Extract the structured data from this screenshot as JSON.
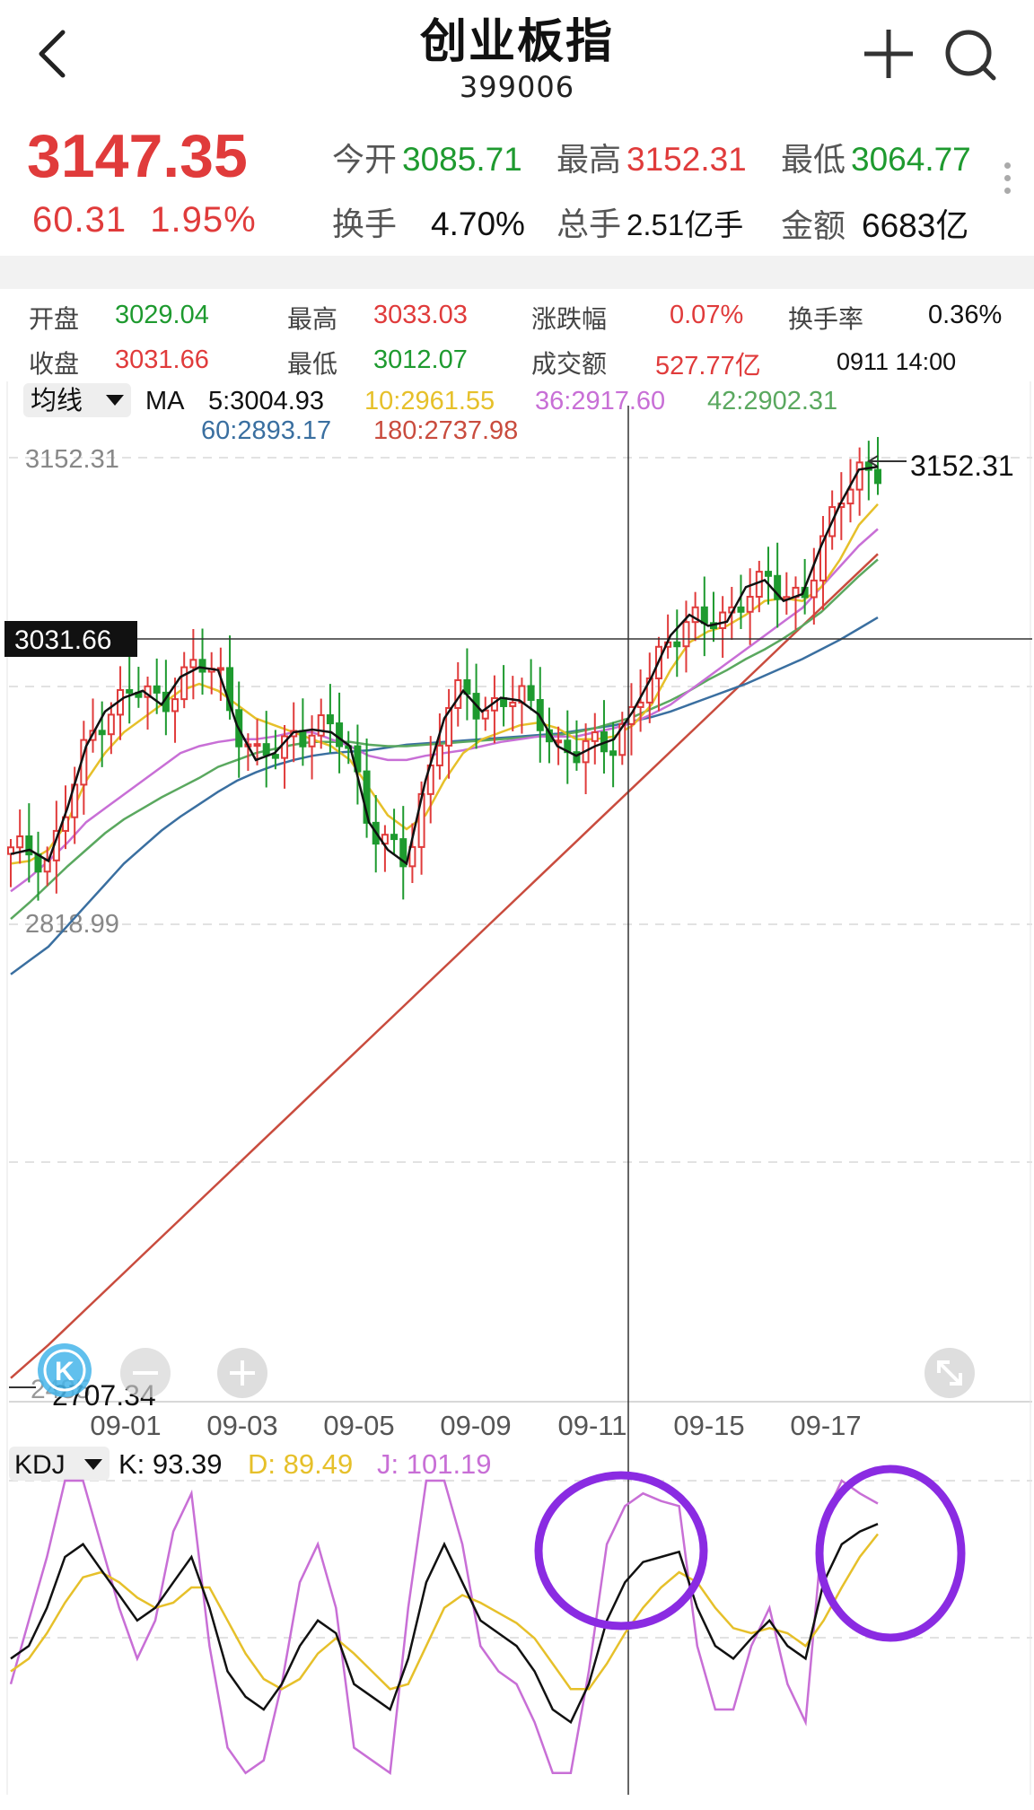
{
  "header": {
    "title": "创业板指",
    "code": "399006"
  },
  "quote": {
    "price": "3147.35",
    "change": "60.31",
    "change_pct": "1.95%",
    "open_label": "今开",
    "open": "3085.71",
    "high_label": "最高",
    "high": "3152.31",
    "low_label": "最低",
    "low": "3064.77",
    "turnover_label": "换手",
    "turnover": "4.70%",
    "volume_label": "总手",
    "volume": "2.51亿手",
    "amount_label": "金额",
    "amount": "6683亿"
  },
  "info": {
    "open_label": "开盘",
    "open": "3029.04",
    "high_label": "最高",
    "high": "3033.03",
    "chg_label": "涨跌幅",
    "chg": "0.07%",
    "turnover_label": "换手率",
    "turnover": "0.36%",
    "close_label": "收盘",
    "close": "3031.66",
    "low_label": "最低",
    "low": "3012.07",
    "amount_label": "成交额",
    "amount": "527.77亿",
    "time": "0911 14:00"
  },
  "colors": {
    "up": "#e03b3b",
    "down": "#1e9a2f",
    "ma5": "#111111",
    "ma10": "#e6c02a",
    "ma36": "#c86fd6",
    "ma42": "#5aa85f",
    "ma60": "#3a6fa0",
    "ma180": "#c94c3e",
    "k": "#111111",
    "d": "#e6c02a",
    "j": "#c86fd6",
    "annotation": "#8a2be2"
  },
  "chart_data": [
    {
      "type": "candlestick",
      "ma_selector": "均线",
      "ma_prefix": "MA",
      "ma_legend": [
        {
          "label": "5:3004.93",
          "color": "#111111"
        },
        {
          "label": "10:2961.55",
          "color": "#e6c02a"
        },
        {
          "label": "36:2917.60",
          "color": "#c86fd6"
        },
        {
          "label": "42:2902.31",
          "color": "#5aa85f"
        },
        {
          "label": "60:2893.17",
          "color": "#3a6fa0"
        },
        {
          "label": "180:2737.98",
          "color": "#c94c3e"
        }
      ],
      "y_labels": {
        "top": "3152.31",
        "mid": "2818.99",
        "bottom": "2707.34",
        "bottom_overlap": "2485"
      },
      "ylim": [
        2480,
        3152.31
      ],
      "crosshair_price": "3031.66",
      "max_marker": "3152.31",
      "x_ticks": [
        "09-01",
        "09-03",
        "09-05",
        "09-09",
        "09-11",
        "09-15",
        "09-17"
      ],
      "close_path": [
        2867,
        2870,
        2862,
        2900,
        2945,
        2970,
        2980,
        2985,
        2975,
        2995,
        3002,
        3000,
        2960,
        2935,
        2940,
        2955,
        2957,
        2955,
        2945,
        2890,
        2870,
        2860,
        2920,
        2965,
        2985,
        2970,
        2980,
        2978,
        2968,
        2945,
        2938,
        2945,
        2950,
        2970,
        2995,
        3025,
        3040,
        3032,
        3035,
        3060,
        3065,
        3050,
        3055,
        3090,
        3120,
        3145,
        3147
      ],
      "ma10_path": [
        2860,
        2862,
        2870,
        2890,
        2920,
        2940,
        2955,
        2965,
        2975,
        2985,
        2990,
        2985,
        2975,
        2965,
        2960,
        2955,
        2950,
        2945,
        2935,
        2915,
        2895,
        2885,
        2895,
        2920,
        2940,
        2950,
        2955,
        2960,
        2962,
        2958,
        2950,
        2950,
        2952,
        2960,
        2975,
        3000,
        3020,
        3028,
        3032,
        3040,
        3050,
        3052,
        3050,
        3060,
        3080,
        3105,
        3120
      ],
      "ma36_path": [
        2840,
        2850,
        2862,
        2875,
        2890,
        2900,
        2910,
        2920,
        2930,
        2940,
        2945,
        2948,
        2950,
        2950,
        2952,
        2955,
        2955,
        2950,
        2945,
        2938,
        2935,
        2935,
        2938,
        2940,
        2942,
        2945,
        2948,
        2950,
        2952,
        2952,
        2952,
        2955,
        2958,
        2962,
        2968,
        2975,
        2985,
        2995,
        3005,
        3015,
        3025,
        3035,
        3045,
        3060,
        3075,
        3090,
        3102
      ],
      "ma42_path": [
        2820,
        2832,
        2845,
        2858,
        2870,
        2882,
        2892,
        2900,
        2908,
        2915,
        2922,
        2930,
        2935,
        2940,
        2943,
        2946,
        2948,
        2948,
        2948,
        2946,
        2945,
        2945,
        2946,
        2947,
        2948,
        2949,
        2950,
        2951,
        2952,
        2953,
        2955,
        2958,
        2962,
        2966,
        2972,
        2978,
        2985,
        2993,
        3000,
        3008,
        3015,
        3023,
        3032,
        3042,
        3055,
        3068,
        3080
      ],
      "ma60_path": [
        2780,
        2790,
        2800,
        2815,
        2830,
        2845,
        2860,
        2872,
        2884,
        2894,
        2903,
        2912,
        2920,
        2926,
        2931,
        2935,
        2938,
        2940,
        2941,
        2942,
        2944,
        2946,
        2947,
        2948,
        2949,
        2950,
        2951,
        2952,
        2953,
        2954,
        2956,
        2958,
        2960,
        2963,
        2966,
        2970,
        2975,
        2980,
        2985,
        2990,
        2996,
        3002,
        3008,
        3015,
        3022,
        3030,
        3038
      ],
      "ma180_path": [
        2488,
        2500,
        2512,
        2525,
        2538,
        2551,
        2564,
        2577,
        2590,
        2603,
        2616,
        2629,
        2642,
        2655,
        2668,
        2681,
        2694,
        2707,
        2720,
        2733,
        2746,
        2759,
        2772,
        2785,
        2798,
        2811,
        2824,
        2837,
        2850,
        2863,
        2876,
        2889,
        2902,
        2915,
        2928,
        2941,
        2954,
        2967,
        2980,
        2993,
        3006,
        3019,
        3032,
        3045,
        3058,
        3071,
        3084
      ]
    },
    {
      "type": "line",
      "indicator_selector": "KDJ",
      "legend": [
        {
          "label": "K: 93.39",
          "color": "#111111"
        },
        {
          "label": "D: 89.49",
          "color": "#e6c02a"
        },
        {
          "label": "J: 101.19",
          "color": "#c86fd6"
        }
      ],
      "ylim": [
        -10,
        110
      ],
      "series": [
        {
          "values": [
            40,
            45,
            60,
            80,
            85,
            75,
            65,
            55,
            60,
            70,
            80,
            60,
            35,
            25,
            20,
            30,
            45,
            55,
            50,
            30,
            25,
            20,
            40,
            70,
            85,
            70,
            55,
            50,
            45,
            35,
            20,
            15,
            30,
            55,
            70,
            78,
            80,
            82,
            60,
            45,
            40,
            48,
            55,
            45,
            40,
            70,
            85,
            90,
            93
          ]
        },
        {
          "values": [
            35,
            40,
            50,
            62,
            72,
            74,
            70,
            64,
            60,
            62,
            68,
            68,
            55,
            42,
            32,
            28,
            32,
            42,
            48,
            42,
            35,
            28,
            30,
            45,
            60,
            65,
            62,
            58,
            54,
            48,
            38,
            28,
            28,
            38,
            50,
            60,
            68,
            74,
            70,
            60,
            52,
            50,
            52,
            50,
            45,
            55,
            68,
            80,
            89
          ]
        },
        {
          "values": [
            30,
            55,
            80,
            110,
            110,
            85,
            60,
            40,
            55,
            90,
            105,
            45,
            5,
            -5,
            0,
            30,
            70,
            85,
            60,
            5,
            0,
            -5,
            60,
            110,
            110,
            85,
            45,
            35,
            30,
            15,
            -5,
            -5,
            35,
            85,
            100,
            105,
            102,
            100,
            45,
            20,
            20,
            45,
            60,
            30,
            15,
            95,
            110,
            105,
            101
          ]
        }
      ]
    }
  ]
}
